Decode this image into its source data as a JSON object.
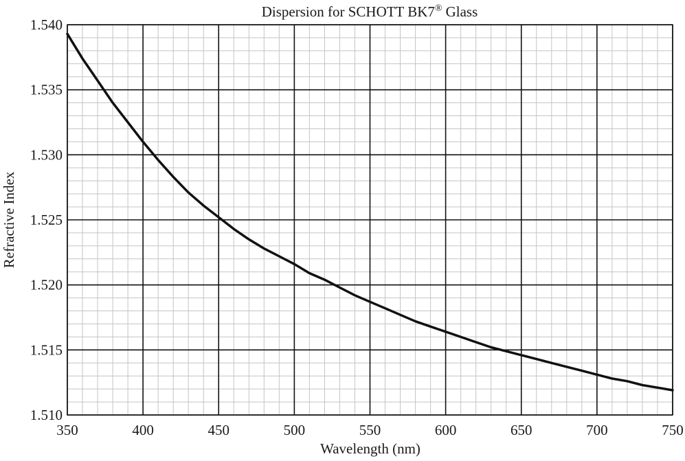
{
  "chart_data": {
    "type": "line",
    "title": "Dispersion for SCHOTT BK7",
    "title_superscript": "®",
    "title_suffix": "Glass",
    "xlabel": "Wavelength (nm)",
    "ylabel": "Refractive Index",
    "xlim": [
      350,
      750
    ],
    "ylim": [
      1.51,
      1.54
    ],
    "x_major_ticks": [
      350,
      400,
      450,
      500,
      550,
      600,
      650,
      700,
      750
    ],
    "x_tick_labels": [
      "350",
      "400",
      "450",
      "500",
      "550",
      "600",
      "650",
      "700",
      "750"
    ],
    "x_minor_step": 10,
    "y_major_ticks": [
      1.51,
      1.515,
      1.52,
      1.525,
      1.53,
      1.535,
      1.54
    ],
    "y_tick_labels": [
      "1.510",
      "1.515",
      "1.520",
      "1.525",
      "1.530",
      "1.535",
      "1.540"
    ],
    "y_minor_step": 0.001,
    "grid": true,
    "series": [
      {
        "color": "#111111",
        "x": [
          350,
          360,
          370,
          380,
          390,
          400,
          410,
          420,
          430,
          440,
          450,
          460,
          470,
          480,
          490,
          500,
          510,
          520,
          530,
          540,
          550,
          560,
          570,
          580,
          590,
          600,
          610,
          620,
          630,
          640,
          650,
          660,
          670,
          680,
          690,
          700,
          710,
          720,
          730,
          740,
          750
        ],
        "y": [
          1.5393,
          1.5374,
          1.5357,
          1.534,
          1.5325,
          1.531,
          1.5296,
          1.5283,
          1.5271,
          1.5261,
          1.5252,
          1.5243,
          1.5235,
          1.5228,
          1.5222,
          1.5216,
          1.5209,
          1.5204,
          1.5198,
          1.5192,
          1.5187,
          1.5182,
          1.5177,
          1.5172,
          1.5168,
          1.5164,
          1.516,
          1.5156,
          1.5152,
          1.5149,
          1.5146,
          1.5143,
          1.514,
          1.5137,
          1.5134,
          1.5131,
          1.5128,
          1.5126,
          1.5123,
          1.5121,
          1.5119
        ]
      }
    ]
  }
}
